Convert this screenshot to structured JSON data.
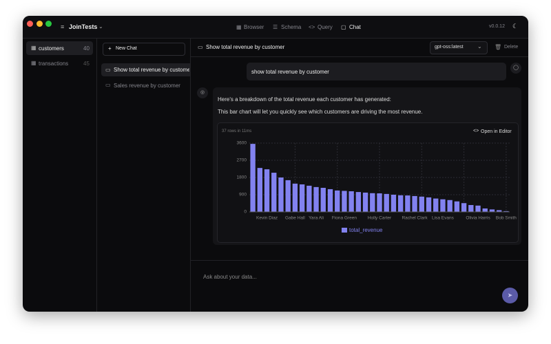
{
  "app": {
    "name": "JoinTests",
    "version": "v0.0.12"
  },
  "nav": [
    "Browser",
    "Schema",
    "Query",
    "Chat"
  ],
  "tables": [
    {
      "name": "customers",
      "count": 40
    },
    {
      "name": "transactions",
      "count": 45
    }
  ],
  "new_chat": "New Chat",
  "chats": [
    "Show total revenue by customer",
    "Sales revenue by customer"
  ],
  "conversation": {
    "title": "Show total revenue by customer",
    "model": "gpt-oss:latest",
    "delete": "Delete",
    "user_message": "show total revenue by customer",
    "assistant_lines": [
      "Here's a breakdown of the total revenue each customer has generated:",
      "This bar chart will let you quickly see which customers are driving the most revenue."
    ],
    "result_meta": "37 rows in 11ms",
    "open_editor": "Open in Editor"
  },
  "input_placeholder": "Ask about your data...",
  "chart_data": {
    "type": "bar",
    "categories": [
      null,
      null,
      "Kevin Diaz",
      null,
      null,
      null,
      "Gabe Hall",
      null,
      null,
      "Yara Ali",
      null,
      null,
      null,
      "Fiona Green",
      null,
      null,
      null,
      null,
      "Holly Carter",
      null,
      null,
      null,
      null,
      "Rachel Clark",
      null,
      null,
      null,
      "Lisa Evans",
      null,
      null,
      null,
      null,
      "Olivia Harris",
      null,
      null,
      null,
      "Bob Smith"
    ],
    "series": [
      {
        "name": "total_revenue",
        "color": "#8282f0",
        "values": [
          3560,
          2300,
          2230,
          2050,
          1800,
          1660,
          1480,
          1440,
          1370,
          1300,
          1260,
          1190,
          1120,
          1100,
          1080,
          1040,
          1010,
          980,
          970,
          940,
          900,
          870,
          860,
          830,
          800,
          760,
          700,
          660,
          620,
          550,
          460,
          360,
          330,
          180,
          130,
          90,
          40
        ]
      }
    ],
    "ylim": [
      0,
      3600
    ],
    "yticks": [
      0,
      900,
      1800,
      2700,
      3600
    ],
    "grid": true
  }
}
